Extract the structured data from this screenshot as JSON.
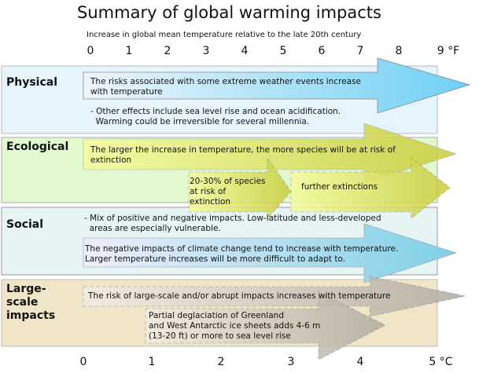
{
  "title": "Summary of global warming impacts",
  "subtitle": "Increase in global mean temperature relative to the late 20th century",
  "axis_f": {
    "ticks": [
      "0",
      "1",
      "2",
      "3",
      "4",
      "5",
      "6",
      "7",
      "8",
      "9 °F"
    ]
  },
  "axis_c": {
    "ticks": [
      "0",
      "1",
      "2",
      "3",
      "4",
      "5 °C"
    ]
  },
  "colors": {
    "physical": "#e6f5fd",
    "ecological": "#e2f9cf",
    "social": "#e6f4f4",
    "large_scale": "#f0e5c6",
    "blue_arrow": "#6fd0f5",
    "olive_arrow": "#c8cc3a",
    "gray_arrow": "#b0aaa0"
  },
  "physical": {
    "label": "Physical",
    "arrow_text": "The risks associated with some extreme weather events increase with temperature",
    "note": "- Other effects include sea level rise and ocean acidification.\n  Warming could be irreversible for several millennia."
  },
  "ecological": {
    "label": "Ecological",
    "arrow_text": "The larger the increase in temperature, the more species will be at risk of extinction",
    "arrow2_text": "20-30% of species at risk of extinction",
    "arrow3_text": "further extinctions"
  },
  "social": {
    "label": "Social",
    "note": "- Mix of positive and negative impacts. Low-latitude and less-developed\n  areas are especially vulnerable.",
    "arrow_text": "The negative impacts of climate change tend to increase with temperature.\nLarger temperature increases will be more difficult to adapt to."
  },
  "large_scale": {
    "label": "Large-\nscale\nimpacts",
    "arrow_text": "The risk of large-scale and/or abrupt impacts increases with temperature",
    "arrow2_text": "Partial deglaciation of Greenland\nand West Antarctic ice sheets adds 4-6 m\n(13-20 ft) or more to sea level rise"
  }
}
